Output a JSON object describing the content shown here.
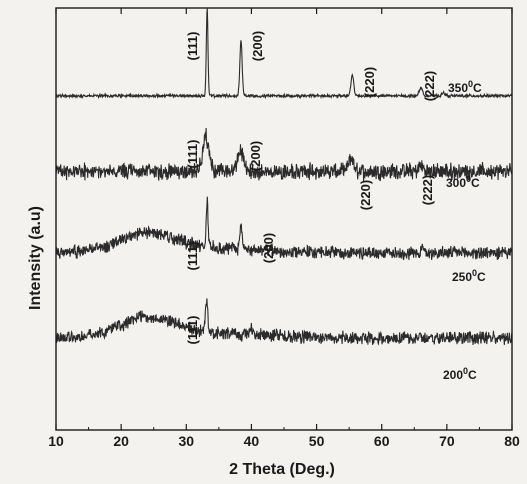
{
  "chart_data": {
    "type": "line",
    "xlabel": "2 Theta (Deg.)",
    "ylabel": "Intensity (a.u)",
    "xlim": [
      10,
      80
    ],
    "x_ticks": [
      "10",
      "20",
      "30",
      "40",
      "50",
      "60",
      "70",
      "80"
    ],
    "grid": false,
    "legend": "inline labels at right",
    "series": [
      {
        "name": "350°C",
        "labels": [
          "(111)",
          "(200)",
          "(220)",
          "(222)",
          "350",
          "0",
          "C"
        ],
        "baseline": 0.9,
        "noise": 0.25,
        "hump": 0.0,
        "peaks": [
          {
            "x": 33.2,
            "height": 19.0,
            "width": 0.18
          },
          {
            "x": 38.4,
            "height": 12.0,
            "width": 0.25
          },
          {
            "x": 55.5,
            "height": 4.5,
            "width": 0.3
          },
          {
            "x": 66.0,
            "height": 1.8,
            "width": 0.35
          },
          {
            "x": 69.5,
            "height": 0.7,
            "width": 0.3
          }
        ]
      },
      {
        "name": "300°C",
        "labels": [
          "(111)",
          "(200)",
          "(220)",
          "(222)",
          "300",
          "0",
          "C"
        ],
        "baseline": 2.5,
        "noise": 1.4,
        "hump": 0.0,
        "peaks": [
          {
            "x": 33.0,
            "height": 7.5,
            "width": 0.7
          },
          {
            "x": 38.3,
            "height": 4.5,
            "width": 0.6
          },
          {
            "x": 55.3,
            "height": 3.0,
            "width": 0.5
          },
          {
            "x": 66.0,
            "height": 1.2,
            "width": 0.5
          }
        ]
      },
      {
        "name": "250°C",
        "labels": [
          "(111)",
          "(200)",
          "250",
          "0",
          "C"
        ],
        "baseline": 2.2,
        "noise": 1.1,
        "hump": 3.4,
        "peaks": [
          {
            "x": 33.2,
            "height": 10.0,
            "width": 0.2
          },
          {
            "x": 38.4,
            "height": 5.5,
            "width": 0.22
          },
          {
            "x": 66.2,
            "height": 1.0,
            "width": 0.3
          }
        ]
      },
      {
        "name": "200°C",
        "labels": [
          "(111)",
          "200",
          "0",
          "C"
        ],
        "baseline": 1.5,
        "noise": 1.1,
        "hump": 3.6,
        "peaks": [
          {
            "x": 33.1,
            "height": 6.5,
            "width": 0.25
          },
          {
            "x": 40.0,
            "height": 1.2,
            "width": 0.3
          }
        ]
      }
    ]
  },
  "style": {
    "line_color": "#2b2b2b",
    "axis_color": "#1a1a1a",
    "background": "#f3f2ef"
  }
}
